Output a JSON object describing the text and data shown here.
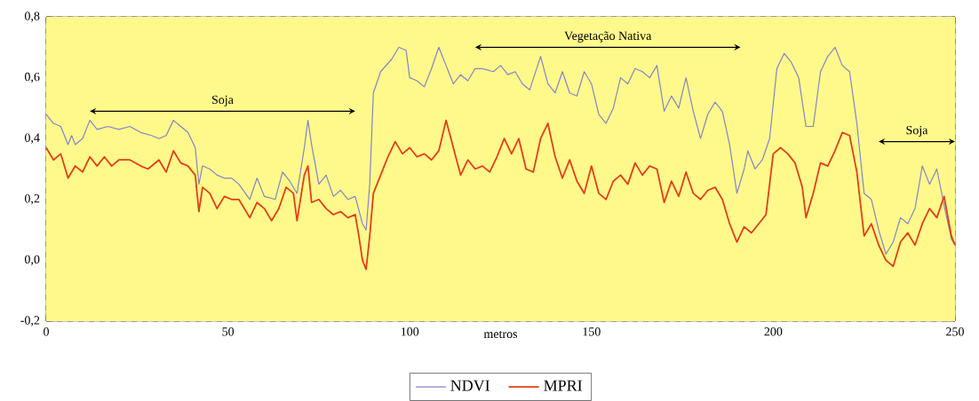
{
  "chart_data": {
    "type": "line",
    "xlabel": "metros",
    "xlim": [
      0,
      250
    ],
    "xticks": [
      0,
      50,
      100,
      150,
      200,
      250
    ],
    "ylim": [
      -0.2,
      0.8
    ],
    "yticks": [
      {
        "value": -0.2,
        "label": "-0,2"
      },
      {
        "value": 0,
        "label": "0,0"
      },
      {
        "value": 0.2,
        "label": "0,2"
      },
      {
        "value": 0.4,
        "label": "0,4"
      },
      {
        "value": 0.6,
        "label": "0,6"
      },
      {
        "value": 0.8,
        "label": "0,8"
      }
    ],
    "grid": true,
    "legend": "bottom",
    "marker": "none",
    "line_style": "solid",
    "annotations": [
      "Soja",
      "Vegetação Nativa",
      "Soja"
    ],
    "series": [
      {
        "name": "NDVI",
        "color": "#8484c8",
        "x": [
          0,
          2,
          4,
          6,
          7,
          8,
          10,
          12,
          14,
          17,
          20,
          23,
          26,
          29,
          31,
          33,
          35,
          37,
          39,
          41,
          42,
          43,
          45,
          47,
          49,
          51,
          53,
          56,
          58,
          60,
          63,
          65,
          67,
          69,
          71,
          72,
          73,
          75,
          77,
          79,
          81,
          83,
          85,
          87,
          88,
          89,
          90,
          92,
          95,
          97,
          99,
          100,
          102,
          104,
          106,
          108,
          110,
          112,
          114,
          116,
          118,
          120,
          123,
          125,
          127,
          129,
          131,
          133,
          136,
          138,
          140,
          142,
          144,
          146,
          148,
          150,
          152,
          154,
          156,
          158,
          160,
          162,
          164,
          166,
          168,
          170,
          172,
          174,
          176,
          178,
          180,
          182,
          184,
          186,
          188,
          190,
          192,
          193,
          195,
          197,
          199,
          201,
          203,
          205,
          207,
          209,
          211,
          213,
          215,
          217,
          219,
          221,
          223,
          225,
          227,
          229,
          231,
          233,
          235,
          237,
          239,
          241,
          243,
          245,
          247,
          249,
          250
        ],
        "values": [
          0.48,
          0.45,
          0.44,
          0.38,
          0.41,
          0.38,
          0.4,
          0.46,
          0.43,
          0.44,
          0.43,
          0.44,
          0.42,
          0.41,
          0.4,
          0.41,
          0.46,
          0.44,
          0.42,
          0.37,
          0.25,
          0.31,
          0.3,
          0.28,
          0.27,
          0.27,
          0.25,
          0.2,
          0.27,
          0.21,
          0.2,
          0.29,
          0.26,
          0.22,
          0.37,
          0.46,
          0.38,
          0.25,
          0.28,
          0.21,
          0.23,
          0.2,
          0.21,
          0.12,
          0.1,
          0.25,
          0.55,
          0.62,
          0.66,
          0.7,
          0.69,
          0.6,
          0.59,
          0.57,
          0.63,
          0.7,
          0.64,
          0.58,
          0.61,
          0.59,
          0.63,
          0.63,
          0.62,
          0.64,
          0.61,
          0.62,
          0.58,
          0.56,
          0.67,
          0.58,
          0.55,
          0.62,
          0.55,
          0.54,
          0.62,
          0.58,
          0.48,
          0.45,
          0.5,
          0.6,
          0.58,
          0.63,
          0.62,
          0.6,
          0.64,
          0.49,
          0.54,
          0.5,
          0.6,
          0.49,
          0.4,
          0.48,
          0.52,
          0.49,
          0.38,
          0.22,
          0.3,
          0.36,
          0.3,
          0.33,
          0.4,
          0.63,
          0.68,
          0.65,
          0.6,
          0.44,
          0.44,
          0.62,
          0.67,
          0.7,
          0.64,
          0.62,
          0.45,
          0.22,
          0.2,
          0.1,
          0.02,
          0.06,
          0.14,
          0.12,
          0.17,
          0.31,
          0.25,
          0.3,
          0.18,
          0.07,
          0.05
        ]
      },
      {
        "name": "MPRI",
        "color": "#e0401a",
        "x": [
          0,
          2,
          4,
          6,
          8,
          10,
          12,
          14,
          16,
          18,
          20,
          23,
          26,
          28,
          31,
          33,
          35,
          37,
          39,
          41,
          42,
          43,
          45,
          47,
          49,
          51,
          53,
          56,
          58,
          60,
          62,
          64,
          66,
          68,
          69,
          71,
          72,
          73,
          75,
          77,
          79,
          81,
          83,
          85,
          86,
          87,
          88,
          89,
          90,
          92,
          94,
          96,
          98,
          100,
          102,
          104,
          106,
          108,
          110,
          112,
          114,
          116,
          118,
          120,
          122,
          124,
          126,
          128,
          130,
          132,
          134,
          136,
          138,
          140,
          142,
          144,
          146,
          148,
          150,
          152,
          154,
          156,
          158,
          160,
          162,
          164,
          166,
          168,
          170,
          172,
          174,
          176,
          178,
          180,
          182,
          184,
          186,
          188,
          190,
          192,
          194,
          196,
          198,
          200,
          202,
          204,
          206,
          208,
          209,
          211,
          213,
          215,
          217,
          219,
          221,
          223,
          225,
          227,
          229,
          231,
          233,
          235,
          237,
          239,
          241,
          243,
          245,
          247,
          249,
          250
        ],
        "values": [
          0.37,
          0.33,
          0.35,
          0.27,
          0.31,
          0.29,
          0.34,
          0.31,
          0.34,
          0.31,
          0.33,
          0.33,
          0.31,
          0.3,
          0.33,
          0.29,
          0.36,
          0.32,
          0.31,
          0.28,
          0.16,
          0.24,
          0.22,
          0.17,
          0.21,
          0.2,
          0.2,
          0.14,
          0.19,
          0.17,
          0.13,
          0.17,
          0.24,
          0.22,
          0.13,
          0.28,
          0.31,
          0.19,
          0.2,
          0.17,
          0.15,
          0.16,
          0.14,
          0.15,
          0.08,
          0.0,
          -0.03,
          0.08,
          0.22,
          0.28,
          0.34,
          0.39,
          0.35,
          0.37,
          0.34,
          0.35,
          0.33,
          0.36,
          0.46,
          0.37,
          0.28,
          0.33,
          0.3,
          0.31,
          0.29,
          0.34,
          0.4,
          0.35,
          0.4,
          0.3,
          0.29,
          0.4,
          0.45,
          0.34,
          0.27,
          0.33,
          0.26,
          0.22,
          0.31,
          0.22,
          0.2,
          0.26,
          0.28,
          0.25,
          0.32,
          0.28,
          0.31,
          0.3,
          0.19,
          0.26,
          0.21,
          0.29,
          0.22,
          0.2,
          0.23,
          0.24,
          0.2,
          0.12,
          0.06,
          0.11,
          0.09,
          0.12,
          0.15,
          0.35,
          0.37,
          0.35,
          0.32,
          0.24,
          0.14,
          0.22,
          0.32,
          0.31,
          0.36,
          0.42,
          0.41,
          0.29,
          0.08,
          0.12,
          0.05,
          0.0,
          -0.02,
          0.06,
          0.09,
          0.05,
          0.12,
          0.17,
          0.14,
          0.21,
          0.08,
          0.05
        ]
      }
    ]
  }
}
